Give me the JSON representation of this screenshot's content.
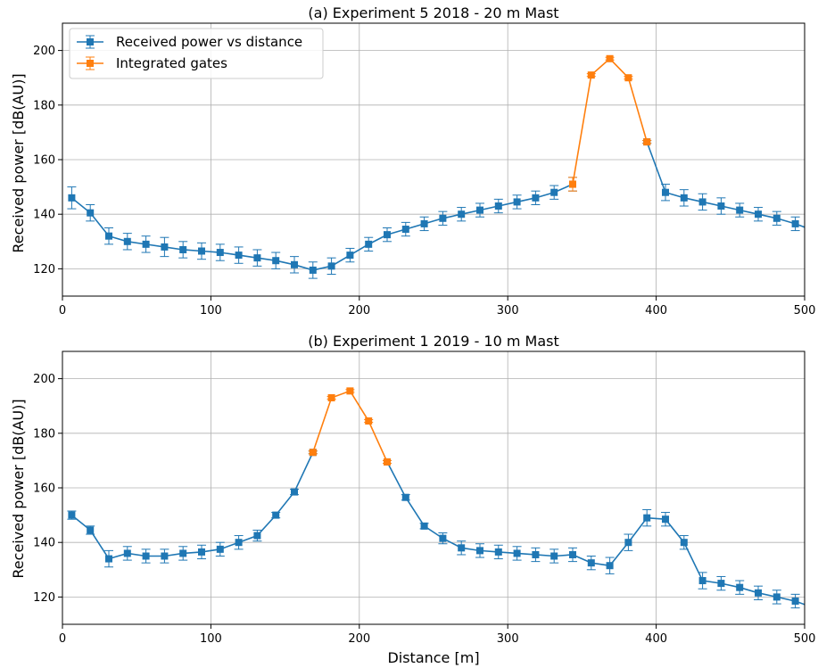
{
  "chart_data": [
    {
      "type": "line",
      "title": "(a) Experiment 5 2018 - 20 m Mast",
      "xlabel": "",
      "ylabel": "Received power [dB(AU)]",
      "xlim": [
        0,
        500
      ],
      "ylim": [
        110,
        210
      ],
      "xticks": [
        0,
        100,
        200,
        300,
        400,
        500
      ],
      "yticks": [
        120,
        140,
        160,
        180,
        200
      ],
      "grid": true,
      "legend": {
        "placement": "upper-left",
        "entries": [
          "Received power vs distance",
          "Integrated gates"
        ]
      },
      "colors": {
        "main": "#1f77b4",
        "integrated": "#ff7f0e"
      },
      "series": [
        {
          "name": "Received power vs distance",
          "x": [
            6.25,
            18.75,
            31.25,
            43.75,
            56.25,
            68.75,
            81.25,
            93.75,
            106.25,
            118.75,
            131.25,
            143.75,
            156.25,
            168.75,
            181.25,
            193.75,
            206.25,
            218.75,
            231.25,
            243.75,
            256.25,
            268.75,
            281.25,
            293.75,
            306.25,
            318.75,
            331.25,
            343.75
          ],
          "y": [
            146,
            140.5,
            132,
            130,
            129,
            128,
            127,
            126.5,
            126,
            125,
            124,
            123,
            121.5,
            119.5,
            121,
            125,
            129,
            132.5,
            134.5,
            136.5,
            138.5,
            140,
            141.5,
            143,
            144.5,
            146,
            148,
            151
          ],
          "err": [
            4,
            3,
            3,
            3,
            3,
            3.5,
            3,
            3,
            3,
            3,
            3,
            3,
            3,
            3,
            3,
            2.5,
            2.5,
            2.5,
            2.5,
            2.5,
            2.5,
            2.5,
            2.5,
            2.5,
            2.5,
            2.5,
            2.5,
            2.5
          ]
        },
        {
          "name": "Received power vs distance",
          "x": [
            393.75,
            406.25,
            418.75,
            431.25,
            443.75,
            456.25,
            468.75,
            481.25,
            493.75,
            506.25
          ],
          "y": [
            166.5,
            148,
            146,
            144.5,
            143,
            141.5,
            140,
            138.5,
            136.5,
            134
          ],
          "err": [
            0.5,
            3,
            3,
            3,
            3,
            2.5,
            2.5,
            2.5,
            2.5,
            2.5
          ]
        },
        {
          "name": "Integrated gates",
          "x": [
            343.75,
            356.25,
            368.75,
            381.25,
            393.75
          ],
          "y": [
            151,
            191,
            197,
            190,
            166.5
          ],
          "err": [
            2.5,
            0.5,
            0.5,
            0.5,
            0.5
          ]
        }
      ]
    },
    {
      "type": "line",
      "title": "(b) Experiment 1 2019 - 10 m Mast",
      "xlabel": "Distance [m]",
      "ylabel": "Received power [dB(AU)]",
      "xlim": [
        0,
        500
      ],
      "ylim": [
        110,
        210
      ],
      "xticks": [
        0,
        100,
        200,
        300,
        400,
        500
      ],
      "yticks": [
        120,
        140,
        160,
        180,
        200
      ],
      "grid": true,
      "colors": {
        "main": "#1f77b4",
        "integrated": "#ff7f0e"
      },
      "series": [
        {
          "name": "Received power vs distance",
          "x": [
            6.25,
            18.75,
            31.25,
            43.75,
            56.25,
            68.75,
            81.25,
            93.75,
            106.25,
            118.75,
            131.25,
            143.75,
            156.25,
            168.75
          ],
          "y": [
            150,
            144.5,
            134,
            136,
            135,
            135,
            136,
            136.5,
            137.5,
            140,
            142.5,
            150,
            158.5,
            173
          ],
          "err": [
            1.5,
            1.5,
            3,
            2.5,
            2.5,
            2.5,
            2.5,
            2.5,
            2.5,
            2.5,
            2,
            1,
            1,
            0.5
          ]
        },
        {
          "name": "Received power vs distance",
          "x": [
            218.75,
            231.25,
            243.75,
            256.25,
            268.75,
            281.25,
            293.75,
            306.25,
            318.75,
            331.25,
            343.75,
            356.25,
            368.75,
            381.25,
            393.75,
            406.25,
            418.75,
            431.25,
            443.75,
            456.25,
            468.75,
            481.25,
            493.75,
            506.25
          ],
          "y": [
            169.5,
            156.5,
            146,
            141.5,
            138,
            137,
            136.5,
            136,
            135.5,
            135,
            135.5,
            132.5,
            131.5,
            140,
            149,
            148.5,
            140,
            126,
            125,
            123.5,
            121.5,
            120,
            118.5,
            116
          ],
          "err": [
            0.5,
            1,
            1,
            2,
            2.5,
            2.5,
            2.5,
            2.5,
            2.5,
            2.5,
            2.5,
            2.5,
            3,
            3,
            3,
            2.5,
            2.5,
            3,
            2.5,
            2.5,
            2.5,
            2.5,
            2.5,
            2.5
          ]
        },
        {
          "name": "Integrated gates",
          "x": [
            168.75,
            181.25,
            193.75,
            206.25,
            218.75
          ],
          "y": [
            173,
            193,
            195.5,
            184.5,
            169.5
          ],
          "err": [
            0.5,
            0.5,
            0.5,
            0.5,
            0.5
          ]
        }
      ]
    }
  ]
}
